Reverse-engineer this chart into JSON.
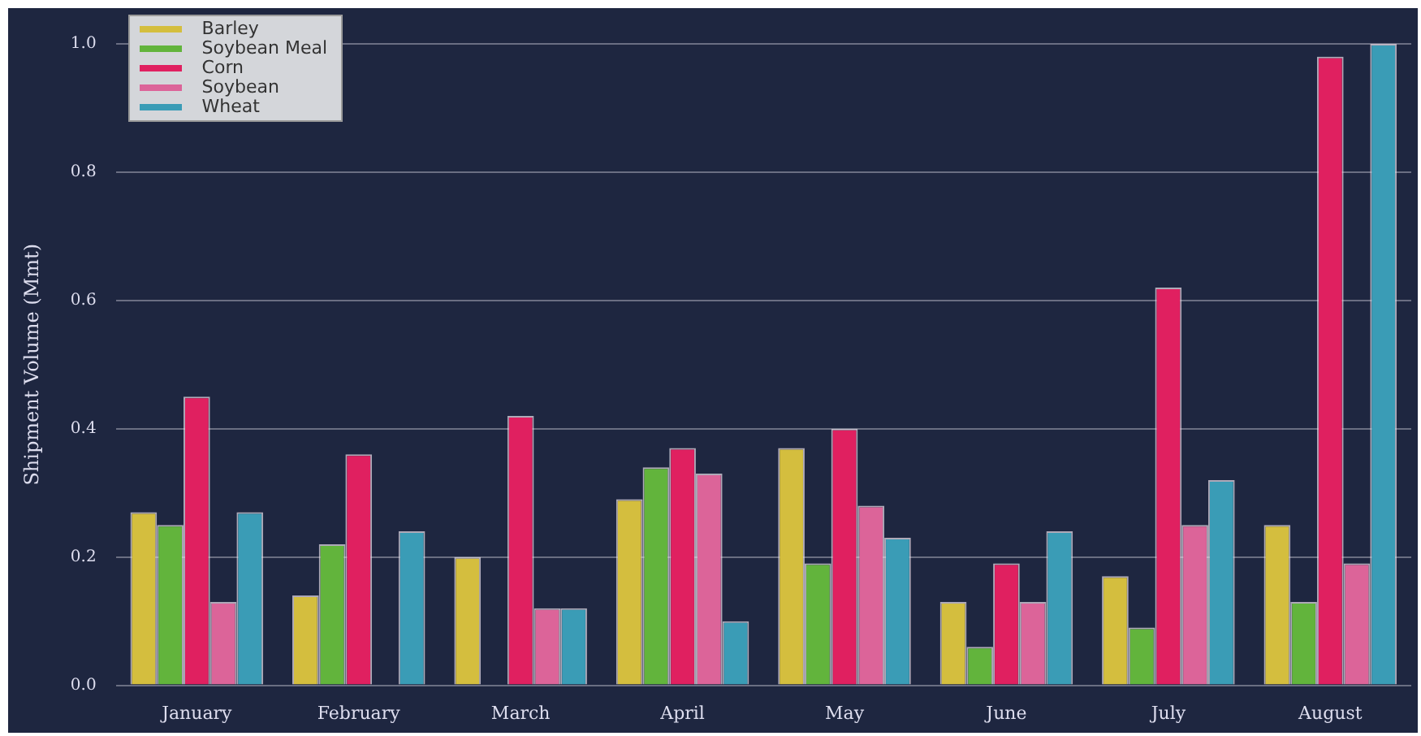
{
  "chart_data": {
    "type": "bar",
    "ylabel": "Shipment Volume (Mmt)",
    "categories": [
      "January",
      "February",
      "March",
      "April",
      "May",
      "June",
      "July",
      "August"
    ],
    "series": [
      {
        "name": "Barley",
        "color": "#d4be3e",
        "values": [
          0.27,
          0.14,
          0.2,
          0.29,
          0.37,
          0.13,
          0.17,
          0.25
        ]
      },
      {
        "name": "Soybean Meal",
        "color": "#62b43c",
        "values": [
          0.25,
          0.22,
          null,
          0.34,
          0.19,
          0.06,
          0.09,
          0.13
        ]
      },
      {
        "name": "Corn",
        "color": "#e02060",
        "values": [
          0.45,
          0.36,
          0.42,
          0.37,
          0.4,
          0.19,
          0.62,
          0.98
        ]
      },
      {
        "name": "Soybean",
        "color": "#dc6499",
        "values": [
          0.13,
          null,
          0.12,
          0.33,
          0.28,
          0.13,
          0.25,
          0.19
        ]
      },
      {
        "name": "Wheat",
        "color": "#3a9cb6",
        "values": [
          0.27,
          0.24,
          0.12,
          0.1,
          0.23,
          0.24,
          0.32,
          1.0
        ]
      }
    ],
    "ylim": [
      0,
      1
    ],
    "yticks": [
      {
        "value": 0,
        "label": "0.0"
      },
      {
        "value": 0.2,
        "label": "0.2"
      },
      {
        "value": 0.4,
        "label": "0.4"
      },
      {
        "value": 0.6,
        "label": "0.6"
      },
      {
        "value": 0.8,
        "label": "0.8"
      },
      {
        "value": 1,
        "label": "1.0"
      }
    ],
    "grid": "y",
    "legend": "top left"
  }
}
